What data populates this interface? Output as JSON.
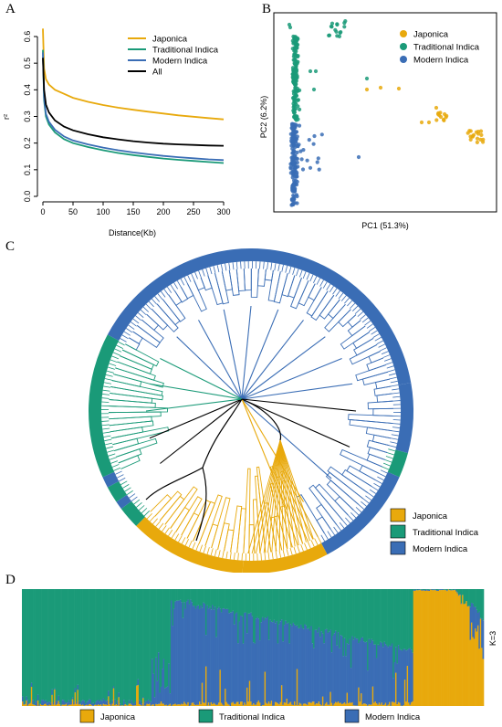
{
  "panels": {
    "a": "A",
    "b": "B",
    "c": "C",
    "d": "D"
  },
  "colors": {
    "japonica": "#e8a90c",
    "traditional": "#1a9a78",
    "modern": "#3a6db5",
    "all": "#000000"
  },
  "chart_data": [
    {
      "type": "line",
      "panel": "A",
      "xlabel": "Distance(Kb)",
      "ylabel": "r²",
      "xlim": [
        0,
        300
      ],
      "ylim": [
        0,
        0.6
      ],
      "xticks": [
        "0",
        "50",
        "100",
        "150",
        "200",
        "250",
        "300"
      ],
      "yticks": [
        "0.0",
        "0.1",
        "0.2",
        "0.3",
        "0.4",
        "0.5",
        "0.6"
      ],
      "x": [
        0,
        2,
        5,
        10,
        20,
        35,
        50,
        75,
        100,
        125,
        150,
        175,
        200,
        225,
        250,
        275,
        300
      ],
      "series": [
        {
          "name": "Japonica",
          "color": "#e8a90c",
          "values": [
            0.63,
            0.48,
            0.44,
            0.42,
            0.4,
            0.385,
            0.37,
            0.355,
            0.343,
            0.333,
            0.325,
            0.318,
            0.311,
            0.304,
            0.299,
            0.294,
            0.289
          ]
        },
        {
          "name": "Traditional Indica",
          "color": "#1a9a78",
          "values": [
            0.55,
            0.36,
            0.3,
            0.27,
            0.24,
            0.215,
            0.2,
            0.185,
            0.173,
            0.163,
            0.155,
            0.148,
            0.142,
            0.137,
            0.133,
            0.129,
            0.125
          ]
        },
        {
          "name": "Modern Indica",
          "color": "#3a6db5",
          "values": [
            0.54,
            0.37,
            0.31,
            0.28,
            0.25,
            0.225,
            0.21,
            0.195,
            0.183,
            0.173,
            0.165,
            0.158,
            0.152,
            0.147,
            0.143,
            0.139,
            0.136
          ]
        },
        {
          "name": "All",
          "color": "#000000",
          "values": [
            0.52,
            0.4,
            0.345,
            0.315,
            0.285,
            0.262,
            0.248,
            0.233,
            0.222,
            0.214,
            0.207,
            0.202,
            0.198,
            0.195,
            0.193,
            0.191,
            0.19
          ]
        }
      ],
      "legend": "top-right",
      "grid": false
    },
    {
      "type": "scatter",
      "panel": "B",
      "xlabel": "PC1 (51.3%)",
      "ylabel": "PC2 (6.2%)",
      "legend": "top-right",
      "series": [
        {
          "name": "Japonica",
          "color": "#e8a90c"
        },
        {
          "name": "Traditional Indica",
          "color": "#1a9a78"
        },
        {
          "name": "Modern Indica",
          "color": "#3a6db5"
        }
      ]
    },
    {
      "type": "tree",
      "panel": "C",
      "legend": "bottom-right",
      "series": [
        {
          "name": "Japonica",
          "color": "#e8a90c"
        },
        {
          "name": "Traditional Indica",
          "color": "#1a9a78"
        },
        {
          "name": "Modern Indica",
          "color": "#3a6db5"
        }
      ]
    },
    {
      "type": "bar",
      "panel": "D",
      "stacked": true,
      "label": "K=3",
      "legend": "bottom",
      "series": [
        {
          "name": "Japonica",
          "color": "#e8a90c"
        },
        {
          "name": "Traditional Indica",
          "color": "#1a9a78"
        },
        {
          "name": "Modern Indica",
          "color": "#3a6db5"
        }
      ]
    }
  ]
}
